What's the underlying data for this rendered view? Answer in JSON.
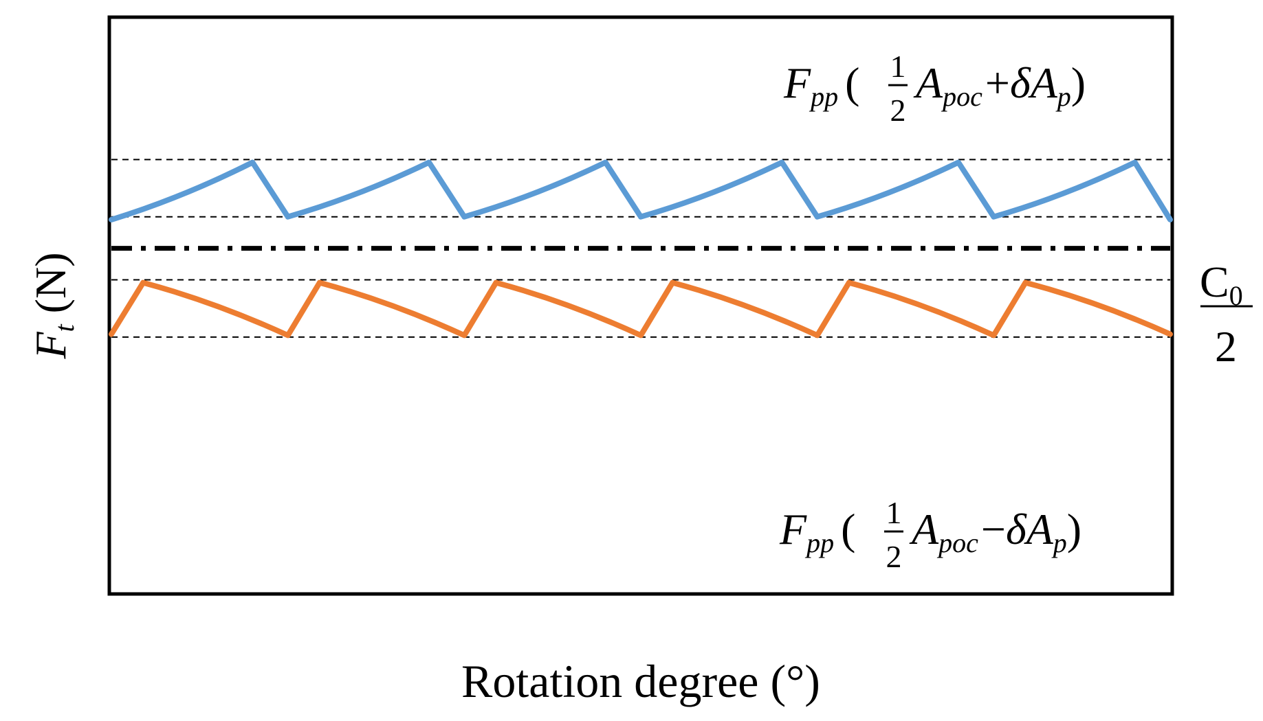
{
  "chart_data": {
    "type": "line",
    "title": "",
    "xlabel": "Rotation degree (°)",
    "ylabel": {
      "symbol": "F",
      "subscript": "t",
      "unit": "(N)"
    },
    "xlim": [
      0,
      6
    ],
    "ylim": [
      0,
      10
    ],
    "grid": false,
    "legend": "none",
    "reference_lines": [
      {
        "name": "upper-envelope-max",
        "y": 7.55,
        "style": "dashed"
      },
      {
        "name": "upper-envelope-min",
        "y": 6.55,
        "style": "dashed"
      },
      {
        "name": "c0-half-centerline",
        "y": 6.0,
        "style": "dash-dot"
      },
      {
        "name": "lower-envelope-max",
        "y": 5.45,
        "style": "dashed"
      },
      {
        "name": "lower-envelope-min",
        "y": 4.45,
        "style": "dashed"
      }
    ],
    "series": [
      {
        "name": "upper",
        "color": "#5B9BD5",
        "period": 1.0,
        "x": [
          0,
          0.8,
          1.0,
          1.8,
          2.0,
          2.8,
          3.0,
          3.8,
          4.0,
          4.8,
          5.0,
          5.8,
          6.0
        ],
        "values": [
          6.5,
          7.5,
          6.55,
          7.5,
          6.55,
          7.5,
          6.55,
          7.5,
          6.55,
          7.5,
          6.55,
          7.5,
          6.5
        ]
      },
      {
        "name": "lower",
        "color": "#ED7D31",
        "period": 1.0,
        "x": [
          0,
          0.18,
          1.0,
          1.18,
          2.0,
          2.18,
          3.0,
          3.18,
          4.0,
          4.18,
          5.0,
          5.18,
          6.0
        ],
        "values": [
          4.5,
          5.4,
          4.48,
          5.4,
          4.48,
          5.4,
          4.48,
          5.4,
          4.48,
          5.4,
          4.48,
          5.4,
          4.5
        ]
      }
    ],
    "annotations": {
      "upper_formula": {
        "F": "F",
        "F_sub": "pp",
        "open": "(",
        "frac_num": "1",
        "frac_den": "2",
        "A": "A",
        "A_sub": "poc",
        "op": "+",
        "delta": "δ",
        "A2": "A",
        "A2_sub": "p",
        "close": ")"
      },
      "lower_formula": {
        "F": "F",
        "F_sub": "pp",
        "open": "(",
        "frac_num": "1",
        "frac_den": "2",
        "A": "A",
        "A_sub": "poc",
        "op": "−",
        "delta": "δ",
        "A2": "A",
        "A2_sub": "p",
        "close": ")"
      },
      "centerline_label": {
        "num": "C",
        "num_sub": "0",
        "den": "2"
      }
    }
  }
}
